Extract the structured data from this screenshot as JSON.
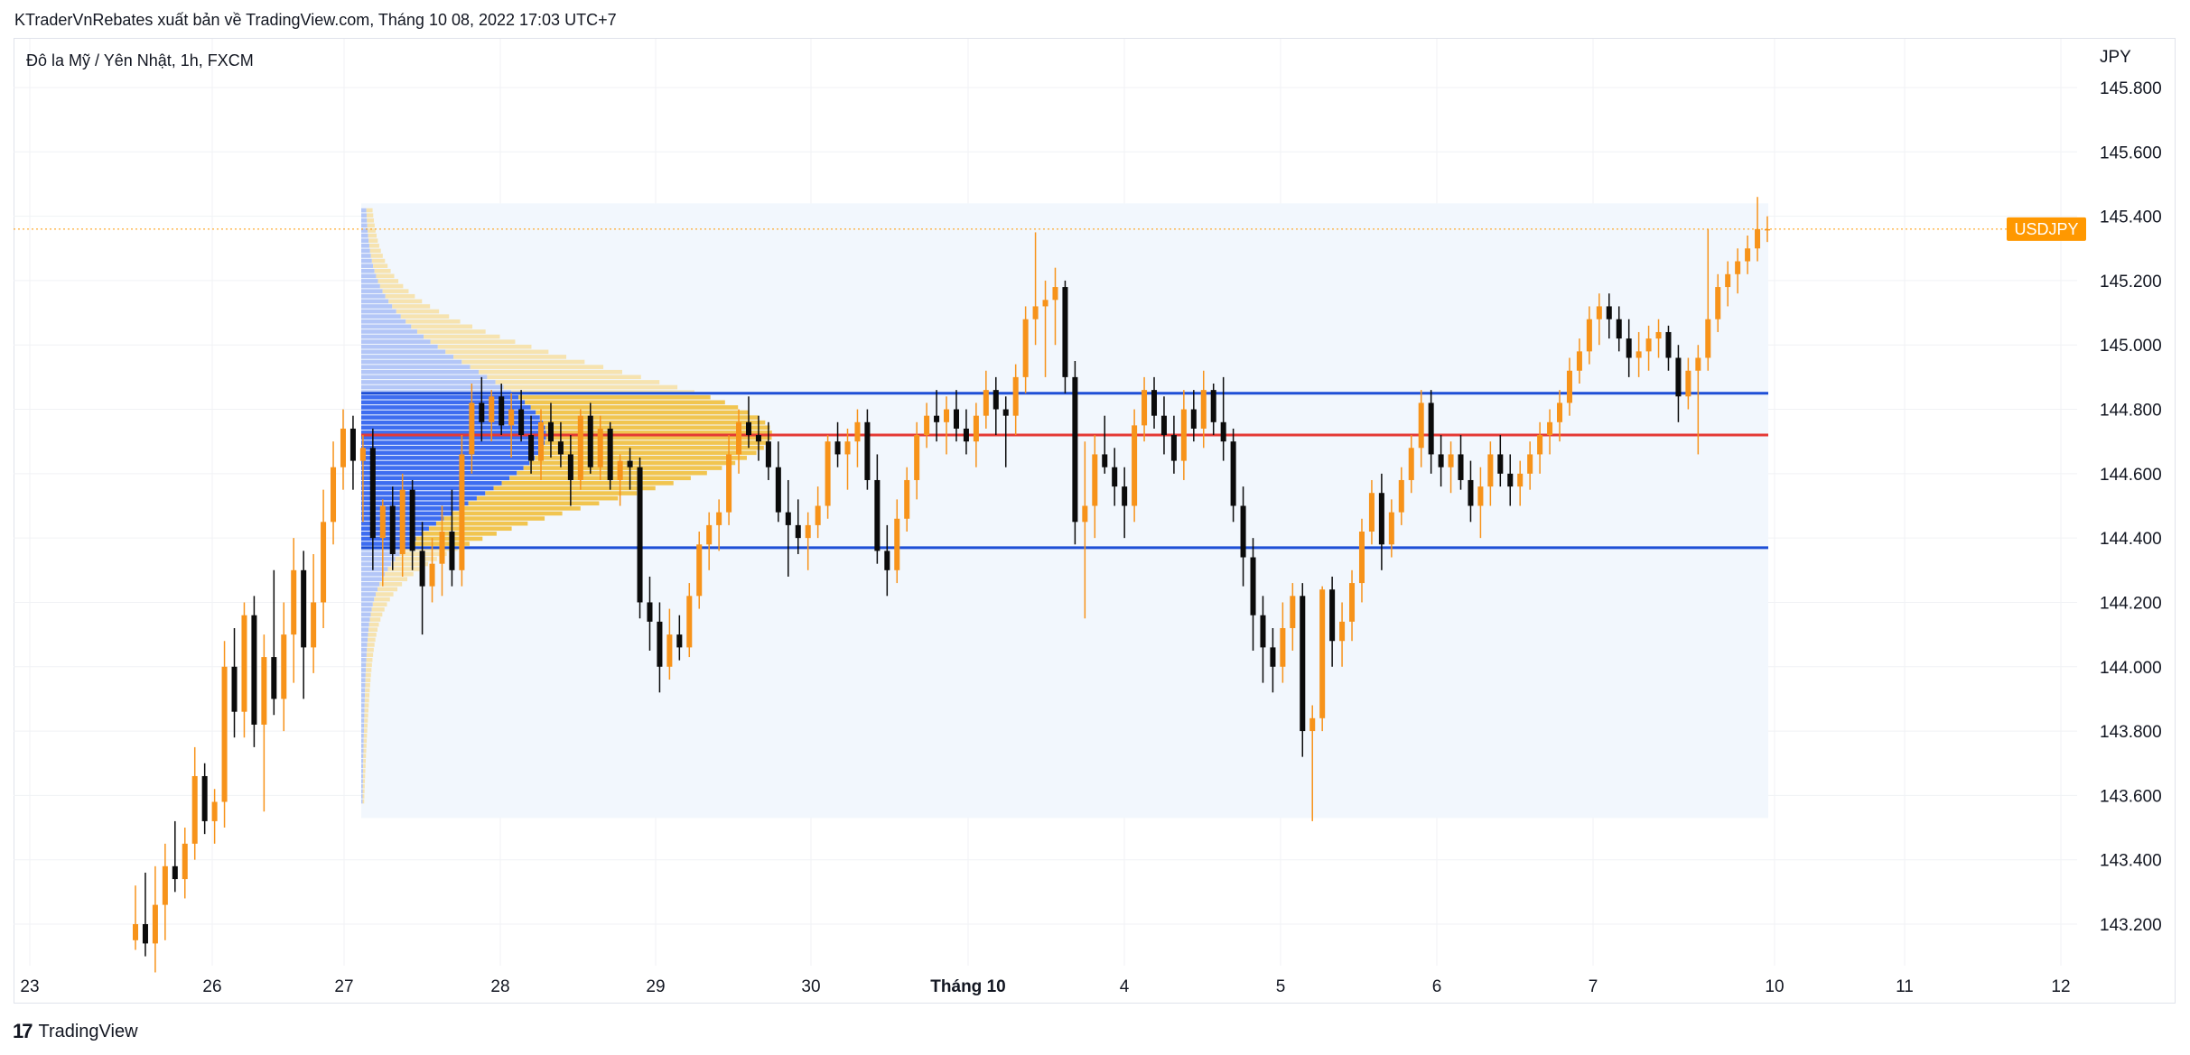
{
  "header": {
    "publish_line": "KTraderVnRebates xuất bản về TradingView.com, Tháng 10 08, 2022 17:03 UTC+7"
  },
  "footer": {
    "brand": "TradingView",
    "logo": "17"
  },
  "chart_data": {
    "type": "candlestick",
    "title": "Đô la Mỹ / Yên Nhật, 1h, FXCM",
    "currency_label": "JPY",
    "last_price_label": "USDJPY",
    "last_price": 145.36,
    "y_ticks": [
      "145.800",
      "145.600",
      "145.400",
      "145.200",
      "145.000",
      "144.800",
      "144.600",
      "144.400",
      "144.200",
      "144.000",
      "143.800",
      "143.600",
      "143.400",
      "143.200"
    ],
    "y_tick_values": [
      145.8,
      145.6,
      145.4,
      145.2,
      145.0,
      144.8,
      144.6,
      144.4,
      144.2,
      144.0,
      143.8,
      143.6,
      143.4,
      143.2
    ],
    "x_ticks": [
      "23",
      "26",
      "27",
      "28",
      "29",
      "30",
      "Tháng 10",
      "4",
      "5",
      "6",
      "7",
      "10",
      "11",
      "12"
    ],
    "x_tick_bold": [
      false,
      false,
      false,
      false,
      false,
      false,
      true,
      false,
      false,
      false,
      false,
      false,
      false,
      false
    ],
    "volume_profile": {
      "value_area_high": 144.85,
      "point_of_control": 144.72,
      "value_area_low": 144.37,
      "range_high": 145.44,
      "range_low": 143.53
    },
    "colors": {
      "up": "#f7931a",
      "down": "#0b0b0b",
      "vah_val": "#1e4fd6",
      "poc": "#e53935",
      "profile_in": "#3e6df0",
      "profile_out": "#b3c6f7",
      "profile_up_in": "#f1c550",
      "profile_up_out": "#f6e3b0",
      "range_bg": "#f2f7fd",
      "last_price": "#ff9800"
    },
    "candles": [
      {
        "o": 143.15,
        "h": 143.32,
        "l": 143.12,
        "c": 143.2
      },
      {
        "o": 143.2,
        "h": 143.36,
        "l": 143.1,
        "c": 143.14
      },
      {
        "o": 143.14,
        "h": 143.38,
        "l": 143.05,
        "c": 143.26
      },
      {
        "o": 143.26,
        "h": 143.45,
        "l": 143.15,
        "c": 143.38
      },
      {
        "o": 143.38,
        "h": 143.52,
        "l": 143.3,
        "c": 143.34
      },
      {
        "o": 143.34,
        "h": 143.5,
        "l": 143.28,
        "c": 143.45
      },
      {
        "o": 143.45,
        "h": 143.75,
        "l": 143.4,
        "c": 143.66
      },
      {
        "o": 143.66,
        "h": 143.7,
        "l": 143.48,
        "c": 143.52
      },
      {
        "o": 143.52,
        "h": 143.62,
        "l": 143.45,
        "c": 143.58
      },
      {
        "o": 143.58,
        "h": 144.08,
        "l": 143.5,
        "c": 144.0
      },
      {
        "o": 144.0,
        "h": 144.12,
        "l": 143.78,
        "c": 143.86
      },
      {
        "o": 143.86,
        "h": 144.2,
        "l": 143.78,
        "c": 144.16
      },
      {
        "o": 144.16,
        "h": 144.22,
        "l": 143.75,
        "c": 143.82
      },
      {
        "o": 143.82,
        "h": 144.1,
        "l": 143.55,
        "c": 144.03
      },
      {
        "o": 144.03,
        "h": 144.3,
        "l": 143.85,
        "c": 143.9
      },
      {
        "o": 143.9,
        "h": 144.2,
        "l": 143.8,
        "c": 144.1
      },
      {
        "o": 144.1,
        "h": 144.4,
        "l": 143.95,
        "c": 144.3
      },
      {
        "o": 144.3,
        "h": 144.36,
        "l": 143.9,
        "c": 144.06
      },
      {
        "o": 144.06,
        "h": 144.35,
        "l": 143.98,
        "c": 144.2
      },
      {
        "o": 144.2,
        "h": 144.55,
        "l": 144.12,
        "c": 144.45
      },
      {
        "o": 144.45,
        "h": 144.7,
        "l": 144.38,
        "c": 144.62
      },
      {
        "o": 144.62,
        "h": 144.8,
        "l": 144.55,
        "c": 144.74
      },
      {
        "o": 144.74,
        "h": 144.78,
        "l": 144.55,
        "c": 144.64
      },
      {
        "o": 144.64,
        "h": 144.72,
        "l": 144.45,
        "c": 144.68
      },
      {
        "o": 144.68,
        "h": 144.74,
        "l": 144.3,
        "c": 144.4
      },
      {
        "o": 144.4,
        "h": 144.52,
        "l": 144.25,
        "c": 144.5
      },
      {
        "o": 144.5,
        "h": 144.56,
        "l": 144.3,
        "c": 144.35
      },
      {
        "o": 144.35,
        "h": 144.6,
        "l": 144.28,
        "c": 144.55
      },
      {
        "o": 144.55,
        "h": 144.58,
        "l": 144.3,
        "c": 144.36
      },
      {
        "o": 144.36,
        "h": 144.45,
        "l": 144.1,
        "c": 144.25
      },
      {
        "o": 144.25,
        "h": 144.4,
        "l": 144.2,
        "c": 144.32
      },
      {
        "o": 144.32,
        "h": 144.5,
        "l": 144.22,
        "c": 144.42
      },
      {
        "o": 144.42,
        "h": 144.55,
        "l": 144.25,
        "c": 144.3
      },
      {
        "o": 144.3,
        "h": 144.72,
        "l": 144.25,
        "c": 144.66
      },
      {
        "o": 144.66,
        "h": 144.88,
        "l": 144.6,
        "c": 144.82
      },
      {
        "o": 144.82,
        "h": 144.9,
        "l": 144.7,
        "c": 144.76
      },
      {
        "o": 144.76,
        "h": 144.86,
        "l": 144.7,
        "c": 144.84
      },
      {
        "o": 144.84,
        "h": 144.88,
        "l": 144.72,
        "c": 144.75
      },
      {
        "o": 144.75,
        "h": 144.85,
        "l": 144.65,
        "c": 144.8
      },
      {
        "o": 144.8,
        "h": 144.86,
        "l": 144.7,
        "c": 144.72
      },
      {
        "o": 144.72,
        "h": 144.78,
        "l": 144.6,
        "c": 144.64
      },
      {
        "o": 144.64,
        "h": 144.8,
        "l": 144.58,
        "c": 144.76
      },
      {
        "o": 144.76,
        "h": 144.82,
        "l": 144.65,
        "c": 144.7
      },
      {
        "o": 144.7,
        "h": 144.76,
        "l": 144.62,
        "c": 144.66
      },
      {
        "o": 144.66,
        "h": 144.72,
        "l": 144.5,
        "c": 144.58
      },
      {
        "o": 144.58,
        "h": 144.8,
        "l": 144.55,
        "c": 144.78
      },
      {
        "o": 144.78,
        "h": 144.82,
        "l": 144.6,
        "c": 144.62
      },
      {
        "o": 144.62,
        "h": 144.78,
        "l": 144.58,
        "c": 144.74
      },
      {
        "o": 144.74,
        "h": 144.76,
        "l": 144.55,
        "c": 144.58
      },
      {
        "o": 144.58,
        "h": 144.66,
        "l": 144.5,
        "c": 144.64
      },
      {
        "o": 144.64,
        "h": 144.68,
        "l": 144.55,
        "c": 144.62
      },
      {
        "o": 144.62,
        "h": 144.65,
        "l": 144.15,
        "c": 144.2
      },
      {
        "o": 144.2,
        "h": 144.28,
        "l": 144.05,
        "c": 144.14
      },
      {
        "o": 144.14,
        "h": 144.2,
        "l": 143.92,
        "c": 144.0
      },
      {
        "o": 144.0,
        "h": 144.18,
        "l": 143.96,
        "c": 144.1
      },
      {
        "o": 144.1,
        "h": 144.16,
        "l": 144.02,
        "c": 144.06
      },
      {
        "o": 144.06,
        "h": 144.26,
        "l": 144.03,
        "c": 144.22
      },
      {
        "o": 144.22,
        "h": 144.42,
        "l": 144.18,
        "c": 144.38
      },
      {
        "o": 144.38,
        "h": 144.48,
        "l": 144.3,
        "c": 144.44
      },
      {
        "o": 144.44,
        "h": 144.52,
        "l": 144.36,
        "c": 144.48
      },
      {
        "o": 144.48,
        "h": 144.72,
        "l": 144.44,
        "c": 144.66
      },
      {
        "o": 144.66,
        "h": 144.8,
        "l": 144.6,
        "c": 144.76
      },
      {
        "o": 144.76,
        "h": 144.84,
        "l": 144.68,
        "c": 144.72
      },
      {
        "o": 144.72,
        "h": 144.78,
        "l": 144.64,
        "c": 144.7
      },
      {
        "o": 144.7,
        "h": 144.76,
        "l": 144.58,
        "c": 144.62
      },
      {
        "o": 144.62,
        "h": 144.7,
        "l": 144.45,
        "c": 144.48
      },
      {
        "o": 144.48,
        "h": 144.58,
        "l": 144.28,
        "c": 144.44
      },
      {
        "o": 144.44,
        "h": 144.52,
        "l": 144.35,
        "c": 144.4
      },
      {
        "o": 144.4,
        "h": 144.48,
        "l": 144.3,
        "c": 144.44
      },
      {
        "o": 144.44,
        "h": 144.56,
        "l": 144.4,
        "c": 144.5
      },
      {
        "o": 144.5,
        "h": 144.72,
        "l": 144.46,
        "c": 144.7
      },
      {
        "o": 144.7,
        "h": 144.76,
        "l": 144.62,
        "c": 144.66
      },
      {
        "o": 144.66,
        "h": 144.74,
        "l": 144.55,
        "c": 144.7
      },
      {
        "o": 144.7,
        "h": 144.8,
        "l": 144.62,
        "c": 144.76
      },
      {
        "o": 144.76,
        "h": 144.8,
        "l": 144.55,
        "c": 144.58
      },
      {
        "o": 144.58,
        "h": 144.66,
        "l": 144.32,
        "c": 144.36
      },
      {
        "o": 144.36,
        "h": 144.44,
        "l": 144.22,
        "c": 144.3
      },
      {
        "o": 144.3,
        "h": 144.52,
        "l": 144.26,
        "c": 144.46
      },
      {
        "o": 144.46,
        "h": 144.62,
        "l": 144.42,
        "c": 144.58
      },
      {
        "o": 144.58,
        "h": 144.76,
        "l": 144.52,
        "c": 144.72
      },
      {
        "o": 144.72,
        "h": 144.82,
        "l": 144.68,
        "c": 144.78
      },
      {
        "o": 144.78,
        "h": 144.86,
        "l": 144.7,
        "c": 144.76
      },
      {
        "o": 144.76,
        "h": 144.84,
        "l": 144.66,
        "c": 144.8
      },
      {
        "o": 144.8,
        "h": 144.86,
        "l": 144.7,
        "c": 144.74
      },
      {
        "o": 144.74,
        "h": 144.8,
        "l": 144.66,
        "c": 144.7
      },
      {
        "o": 144.7,
        "h": 144.82,
        "l": 144.62,
        "c": 144.78
      },
      {
        "o": 144.78,
        "h": 144.92,
        "l": 144.74,
        "c": 144.86
      },
      {
        "o": 144.86,
        "h": 144.9,
        "l": 144.72,
        "c": 144.8
      },
      {
        "o": 144.8,
        "h": 144.84,
        "l": 144.62,
        "c": 144.78
      },
      {
        "o": 144.78,
        "h": 144.94,
        "l": 144.72,
        "c": 144.9
      },
      {
        "o": 144.9,
        "h": 145.12,
        "l": 144.85,
        "c": 145.08
      },
      {
        "o": 145.08,
        "h": 145.35,
        "l": 145.0,
        "c": 145.12
      },
      {
        "o": 145.12,
        "h": 145.2,
        "l": 144.9,
        "c": 145.14
      },
      {
        "o": 145.14,
        "h": 145.24,
        "l": 145.0,
        "c": 145.18
      },
      {
        "o": 145.18,
        "h": 145.2,
        "l": 144.85,
        "c": 144.9
      },
      {
        "o": 144.9,
        "h": 144.95,
        "l": 144.38,
        "c": 144.45
      },
      {
        "o": 144.45,
        "h": 144.7,
        "l": 144.15,
        "c": 144.5
      },
      {
        "o": 144.5,
        "h": 144.72,
        "l": 144.4,
        "c": 144.66
      },
      {
        "o": 144.66,
        "h": 144.78,
        "l": 144.6,
        "c": 144.62
      },
      {
        "o": 144.62,
        "h": 144.68,
        "l": 144.5,
        "c": 144.56
      },
      {
        "o": 144.56,
        "h": 144.62,
        "l": 144.4,
        "c": 144.5
      },
      {
        "o": 144.5,
        "h": 144.8,
        "l": 144.45,
        "c": 144.75
      },
      {
        "o": 144.75,
        "h": 144.9,
        "l": 144.7,
        "c": 144.86
      },
      {
        "o": 144.86,
        "h": 144.9,
        "l": 144.74,
        "c": 144.78
      },
      {
        "o": 144.78,
        "h": 144.84,
        "l": 144.66,
        "c": 144.72
      },
      {
        "o": 144.72,
        "h": 144.78,
        "l": 144.6,
        "c": 144.64
      },
      {
        "o": 144.64,
        "h": 144.86,
        "l": 144.58,
        "c": 144.8
      },
      {
        "o": 144.8,
        "h": 144.86,
        "l": 144.7,
        "c": 144.74
      },
      {
        "o": 144.74,
        "h": 144.92,
        "l": 144.68,
        "c": 144.86
      },
      {
        "o": 144.86,
        "h": 144.88,
        "l": 144.72,
        "c": 144.76
      },
      {
        "o": 144.76,
        "h": 144.9,
        "l": 144.64,
        "c": 144.7
      },
      {
        "o": 144.7,
        "h": 144.74,
        "l": 144.45,
        "c": 144.5
      },
      {
        "o": 144.5,
        "h": 144.56,
        "l": 144.25,
        "c": 144.34
      },
      {
        "o": 144.34,
        "h": 144.4,
        "l": 144.05,
        "c": 144.16
      },
      {
        "o": 144.16,
        "h": 144.22,
        "l": 143.95,
        "c": 144.06
      },
      {
        "o": 144.06,
        "h": 144.12,
        "l": 143.92,
        "c": 144.0
      },
      {
        "o": 144.0,
        "h": 144.2,
        "l": 143.95,
        "c": 144.12
      },
      {
        "o": 144.12,
        "h": 144.26,
        "l": 144.05,
        "c": 144.22
      },
      {
        "o": 144.22,
        "h": 144.26,
        "l": 143.72,
        "c": 143.8
      },
      {
        "o": 143.8,
        "h": 143.88,
        "l": 143.52,
        "c": 143.84
      },
      {
        "o": 143.84,
        "h": 144.25,
        "l": 143.8,
        "c": 144.24
      },
      {
        "o": 144.24,
        "h": 144.28,
        "l": 144.0,
        "c": 144.08
      },
      {
        "o": 144.08,
        "h": 144.2,
        "l": 144.0,
        "c": 144.14
      },
      {
        "o": 144.14,
        "h": 144.3,
        "l": 144.08,
        "c": 144.26
      },
      {
        "o": 144.26,
        "h": 144.46,
        "l": 144.2,
        "c": 144.42
      },
      {
        "o": 144.42,
        "h": 144.58,
        "l": 144.38,
        "c": 144.54
      },
      {
        "o": 144.54,
        "h": 144.6,
        "l": 144.3,
        "c": 144.38
      },
      {
        "o": 144.38,
        "h": 144.52,
        "l": 144.34,
        "c": 144.48
      },
      {
        "o": 144.48,
        "h": 144.62,
        "l": 144.44,
        "c": 144.58
      },
      {
        "o": 144.58,
        "h": 144.72,
        "l": 144.54,
        "c": 144.68
      },
      {
        "o": 144.68,
        "h": 144.86,
        "l": 144.62,
        "c": 144.82
      },
      {
        "o": 144.82,
        "h": 144.86,
        "l": 144.6,
        "c": 144.66
      },
      {
        "o": 144.66,
        "h": 144.72,
        "l": 144.56,
        "c": 144.62
      },
      {
        "o": 144.62,
        "h": 144.7,
        "l": 144.54,
        "c": 144.66
      },
      {
        "o": 144.66,
        "h": 144.72,
        "l": 144.55,
        "c": 144.58
      },
      {
        "o": 144.58,
        "h": 144.64,
        "l": 144.45,
        "c": 144.5
      },
      {
        "o": 144.5,
        "h": 144.62,
        "l": 144.4,
        "c": 144.56
      },
      {
        "o": 144.56,
        "h": 144.7,
        "l": 144.5,
        "c": 144.66
      },
      {
        "o": 144.66,
        "h": 144.72,
        "l": 144.56,
        "c": 144.6
      },
      {
        "o": 144.6,
        "h": 144.66,
        "l": 144.5,
        "c": 144.56
      },
      {
        "o": 144.56,
        "h": 144.64,
        "l": 144.5,
        "c": 144.6
      },
      {
        "o": 144.6,
        "h": 144.7,
        "l": 144.55,
        "c": 144.66
      },
      {
        "o": 144.66,
        "h": 144.76,
        "l": 144.6,
        "c": 144.72
      },
      {
        "o": 144.72,
        "h": 144.8,
        "l": 144.66,
        "c": 144.76
      },
      {
        "o": 144.76,
        "h": 144.86,
        "l": 144.7,
        "c": 144.82
      },
      {
        "o": 144.82,
        "h": 144.96,
        "l": 144.78,
        "c": 144.92
      },
      {
        "o": 144.92,
        "h": 145.02,
        "l": 144.88,
        "c": 144.98
      },
      {
        "o": 144.98,
        "h": 145.12,
        "l": 144.94,
        "c": 145.08
      },
      {
        "o": 145.08,
        "h": 145.16,
        "l": 145.0,
        "c": 145.12
      },
      {
        "o": 145.12,
        "h": 145.16,
        "l": 145.02,
        "c": 145.08
      },
      {
        "o": 145.08,
        "h": 145.12,
        "l": 144.98,
        "c": 145.02
      },
      {
        "o": 145.02,
        "h": 145.08,
        "l": 144.9,
        "c": 144.96
      },
      {
        "o": 144.96,
        "h": 145.04,
        "l": 144.9,
        "c": 144.98
      },
      {
        "o": 144.98,
        "h": 145.06,
        "l": 144.92,
        "c": 145.02
      },
      {
        "o": 145.02,
        "h": 145.08,
        "l": 144.96,
        "c": 145.04
      },
      {
        "o": 145.04,
        "h": 145.06,
        "l": 144.92,
        "c": 144.96
      },
      {
        "o": 144.96,
        "h": 145.0,
        "l": 144.76,
        "c": 144.84
      },
      {
        "o": 144.84,
        "h": 144.96,
        "l": 144.8,
        "c": 144.92
      },
      {
        "o": 144.92,
        "h": 145.0,
        "l": 144.66,
        "c": 144.96
      },
      {
        "o": 144.96,
        "h": 145.36,
        "l": 144.92,
        "c": 145.08
      },
      {
        "o": 145.08,
        "h": 145.22,
        "l": 145.04,
        "c": 145.18
      },
      {
        "o": 145.18,
        "h": 145.26,
        "l": 145.12,
        "c": 145.22
      },
      {
        "o": 145.22,
        "h": 145.3,
        "l": 145.16,
        "c": 145.26
      },
      {
        "o": 145.26,
        "h": 145.34,
        "l": 145.22,
        "c": 145.3
      },
      {
        "o": 145.3,
        "h": 145.46,
        "l": 145.26,
        "c": 145.36
      },
      {
        "o": 145.36,
        "h": 145.4,
        "l": 145.32,
        "c": 145.36
      }
    ]
  }
}
